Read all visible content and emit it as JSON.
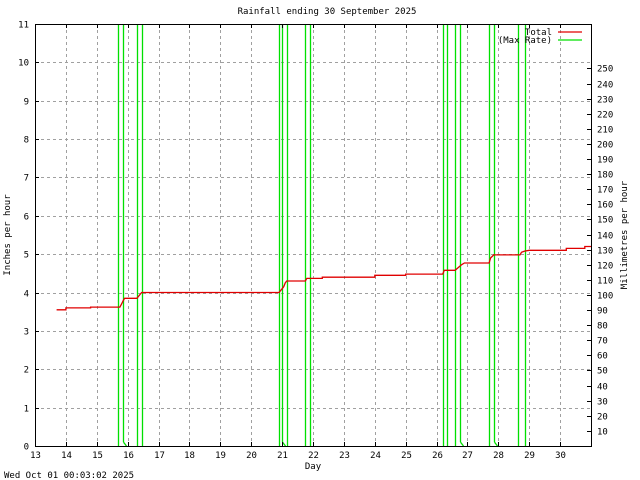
{
  "chart_data": {
    "type": "line",
    "title": "Rainfall ending 30 September 2025",
    "xlabel": "Day",
    "ylabel": "Inches per hour",
    "y2label": "Millimetres per hour",
    "footer": "Wed Oct 01 00:03:02 2025",
    "xlim": [
      13,
      31
    ],
    "ylim": [
      0,
      11
    ],
    "x_ticks": [
      13,
      14,
      15,
      16,
      17,
      18,
      19,
      20,
      21,
      22,
      23,
      24,
      25,
      26,
      27,
      28,
      29,
      30
    ],
    "y_ticks": [
      0,
      1,
      2,
      3,
      4,
      5,
      6,
      7,
      8,
      9,
      10,
      11
    ],
    "y2_ticks": [
      10,
      20,
      30,
      40,
      50,
      60,
      70,
      80,
      90,
      100,
      110,
      120,
      130,
      140,
      150,
      160,
      170,
      180,
      190,
      200,
      210,
      220,
      230,
      240,
      250
    ],
    "grid": true,
    "legend_position": "top-right",
    "colors": {
      "total": "#e00000",
      "max_rate": "#00e000",
      "grid": "#a0a0a0",
      "axis": "#000000"
    },
    "series": [
      {
        "name": "Total",
        "kind": "step",
        "points": [
          [
            13.7,
            3.55
          ],
          [
            14.0,
            3.55
          ],
          [
            14.0,
            3.6
          ],
          [
            14.8,
            3.6
          ],
          [
            14.8,
            3.62
          ],
          [
            15.75,
            3.62
          ],
          [
            15.8,
            3.7
          ],
          [
            15.85,
            3.78
          ],
          [
            15.9,
            3.85
          ],
          [
            16.3,
            3.85
          ],
          [
            16.4,
            3.95
          ],
          [
            16.45,
            4.0
          ],
          [
            20.9,
            4.0
          ],
          [
            20.95,
            4.05
          ],
          [
            21.05,
            4.15
          ],
          [
            21.1,
            4.25
          ],
          [
            21.15,
            4.3
          ],
          [
            21.75,
            4.3
          ],
          [
            21.8,
            4.37
          ],
          [
            22.3,
            4.37
          ],
          [
            22.3,
            4.4
          ],
          [
            24.0,
            4.4
          ],
          [
            24.0,
            4.45
          ],
          [
            25.0,
            4.45
          ],
          [
            25.0,
            4.48
          ],
          [
            26.2,
            4.48
          ],
          [
            26.25,
            4.58
          ],
          [
            26.6,
            4.58
          ],
          [
            26.7,
            4.65
          ],
          [
            26.8,
            4.72
          ],
          [
            26.9,
            4.77
          ],
          [
            27.7,
            4.77
          ],
          [
            27.75,
            4.9
          ],
          [
            27.85,
            4.98
          ],
          [
            28.7,
            4.98
          ],
          [
            28.75,
            5.05
          ],
          [
            28.85,
            5.08
          ],
          [
            29.0,
            5.1
          ],
          [
            30.2,
            5.1
          ],
          [
            30.2,
            5.15
          ],
          [
            30.8,
            5.15
          ],
          [
            30.8,
            5.2
          ],
          [
            31.0,
            5.2
          ]
        ]
      },
      {
        "name": "(Max Rate)",
        "kind": "spikes",
        "note": "vertical spikes exceed plot top (>11 in/hr)",
        "spikes": [
          {
            "x": 15.7,
            "top": 11,
            "bottom": 0
          },
          {
            "x": 15.85,
            "top": 11,
            "bottom": 0.1
          },
          {
            "x": 16.3,
            "top": 11,
            "bottom": 0
          },
          {
            "x": 16.45,
            "top": 11,
            "bottom": 0
          },
          {
            "x": 20.9,
            "top": 11,
            "bottom": 0
          },
          {
            "x": 21.0,
            "top": 11,
            "bottom": 0.1
          },
          {
            "x": 21.15,
            "top": 11,
            "bottom": 0
          },
          {
            "x": 21.75,
            "top": 11,
            "bottom": 0
          },
          {
            "x": 21.9,
            "top": 11,
            "bottom": 0
          },
          {
            "x": 26.2,
            "top": 11,
            "bottom": 0
          },
          {
            "x": 26.35,
            "top": 11,
            "bottom": 0
          },
          {
            "x": 26.6,
            "top": 11,
            "bottom": 0
          },
          {
            "x": 26.75,
            "top": 11,
            "bottom": 0.1
          },
          {
            "x": 27.7,
            "top": 11,
            "bottom": 0
          },
          {
            "x": 27.85,
            "top": 11,
            "bottom": 0.1
          },
          {
            "x": 28.65,
            "top": 11,
            "bottom": 0
          },
          {
            "x": 28.85,
            "top": 11,
            "bottom": 0
          }
        ]
      }
    ]
  }
}
